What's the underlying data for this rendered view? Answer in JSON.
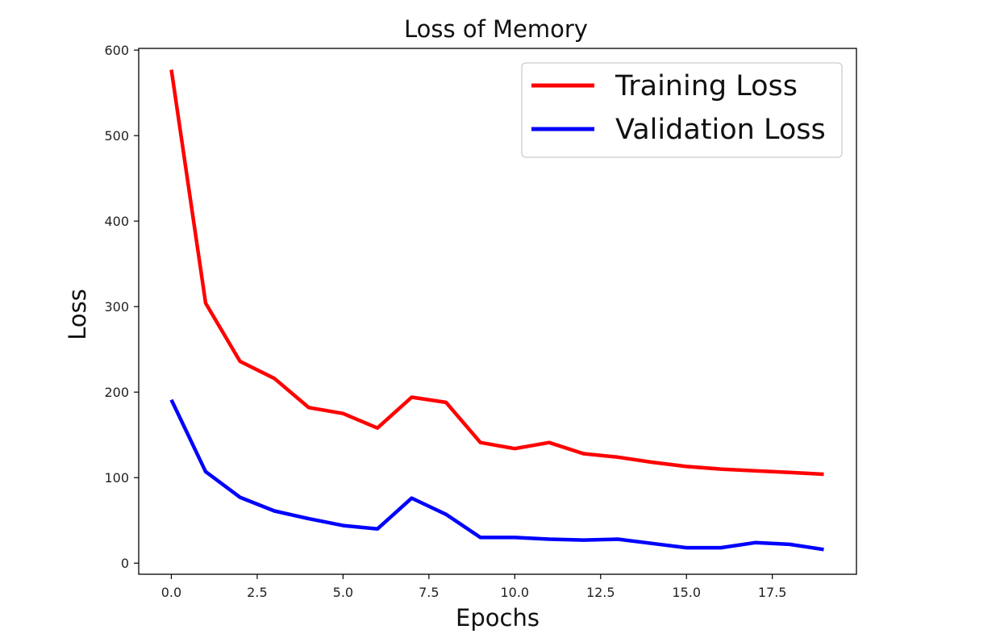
{
  "chart_data": {
    "type": "line",
    "title": "Loss of Memory",
    "xlabel": "Epochs",
    "ylabel": "Loss",
    "xlim": [
      -0.95,
      19.95
    ],
    "ylim": [
      -13,
      602
    ],
    "xticks": [
      0.0,
      2.5,
      5.0,
      7.5,
      10.0,
      12.5,
      15.0,
      17.5
    ],
    "xtick_labels": [
      "0.0",
      "2.5",
      "5.0",
      "7.5",
      "10.0",
      "12.5",
      "15.0",
      "17.5"
    ],
    "yticks": [
      0,
      100,
      200,
      300,
      400,
      500,
      600
    ],
    "ytick_labels": [
      "0",
      "100",
      "200",
      "300",
      "400",
      "500",
      "600"
    ],
    "grid": false,
    "legend_position": "upper right",
    "x": [
      0,
      1,
      2,
      3,
      4,
      5,
      6,
      7,
      8,
      9,
      10,
      11,
      12,
      13,
      14,
      15,
      16,
      17,
      18,
      19
    ],
    "series": [
      {
        "name": "Training Loss",
        "color": "#ff0000",
        "values": [
          577,
          304,
          236,
          216,
          182,
          175,
          158,
          194,
          188,
          141,
          134,
          141,
          128,
          124,
          118,
          113,
          110,
          108,
          106,
          104
        ]
      },
      {
        "name": "Validation Loss",
        "color": "#0000ff",
        "values": [
          191,
          107,
          77,
          61,
          52,
          44,
          40,
          76,
          57,
          30,
          30,
          28,
          27,
          28,
          23,
          18,
          18,
          24,
          22,
          16
        ]
      }
    ]
  }
}
